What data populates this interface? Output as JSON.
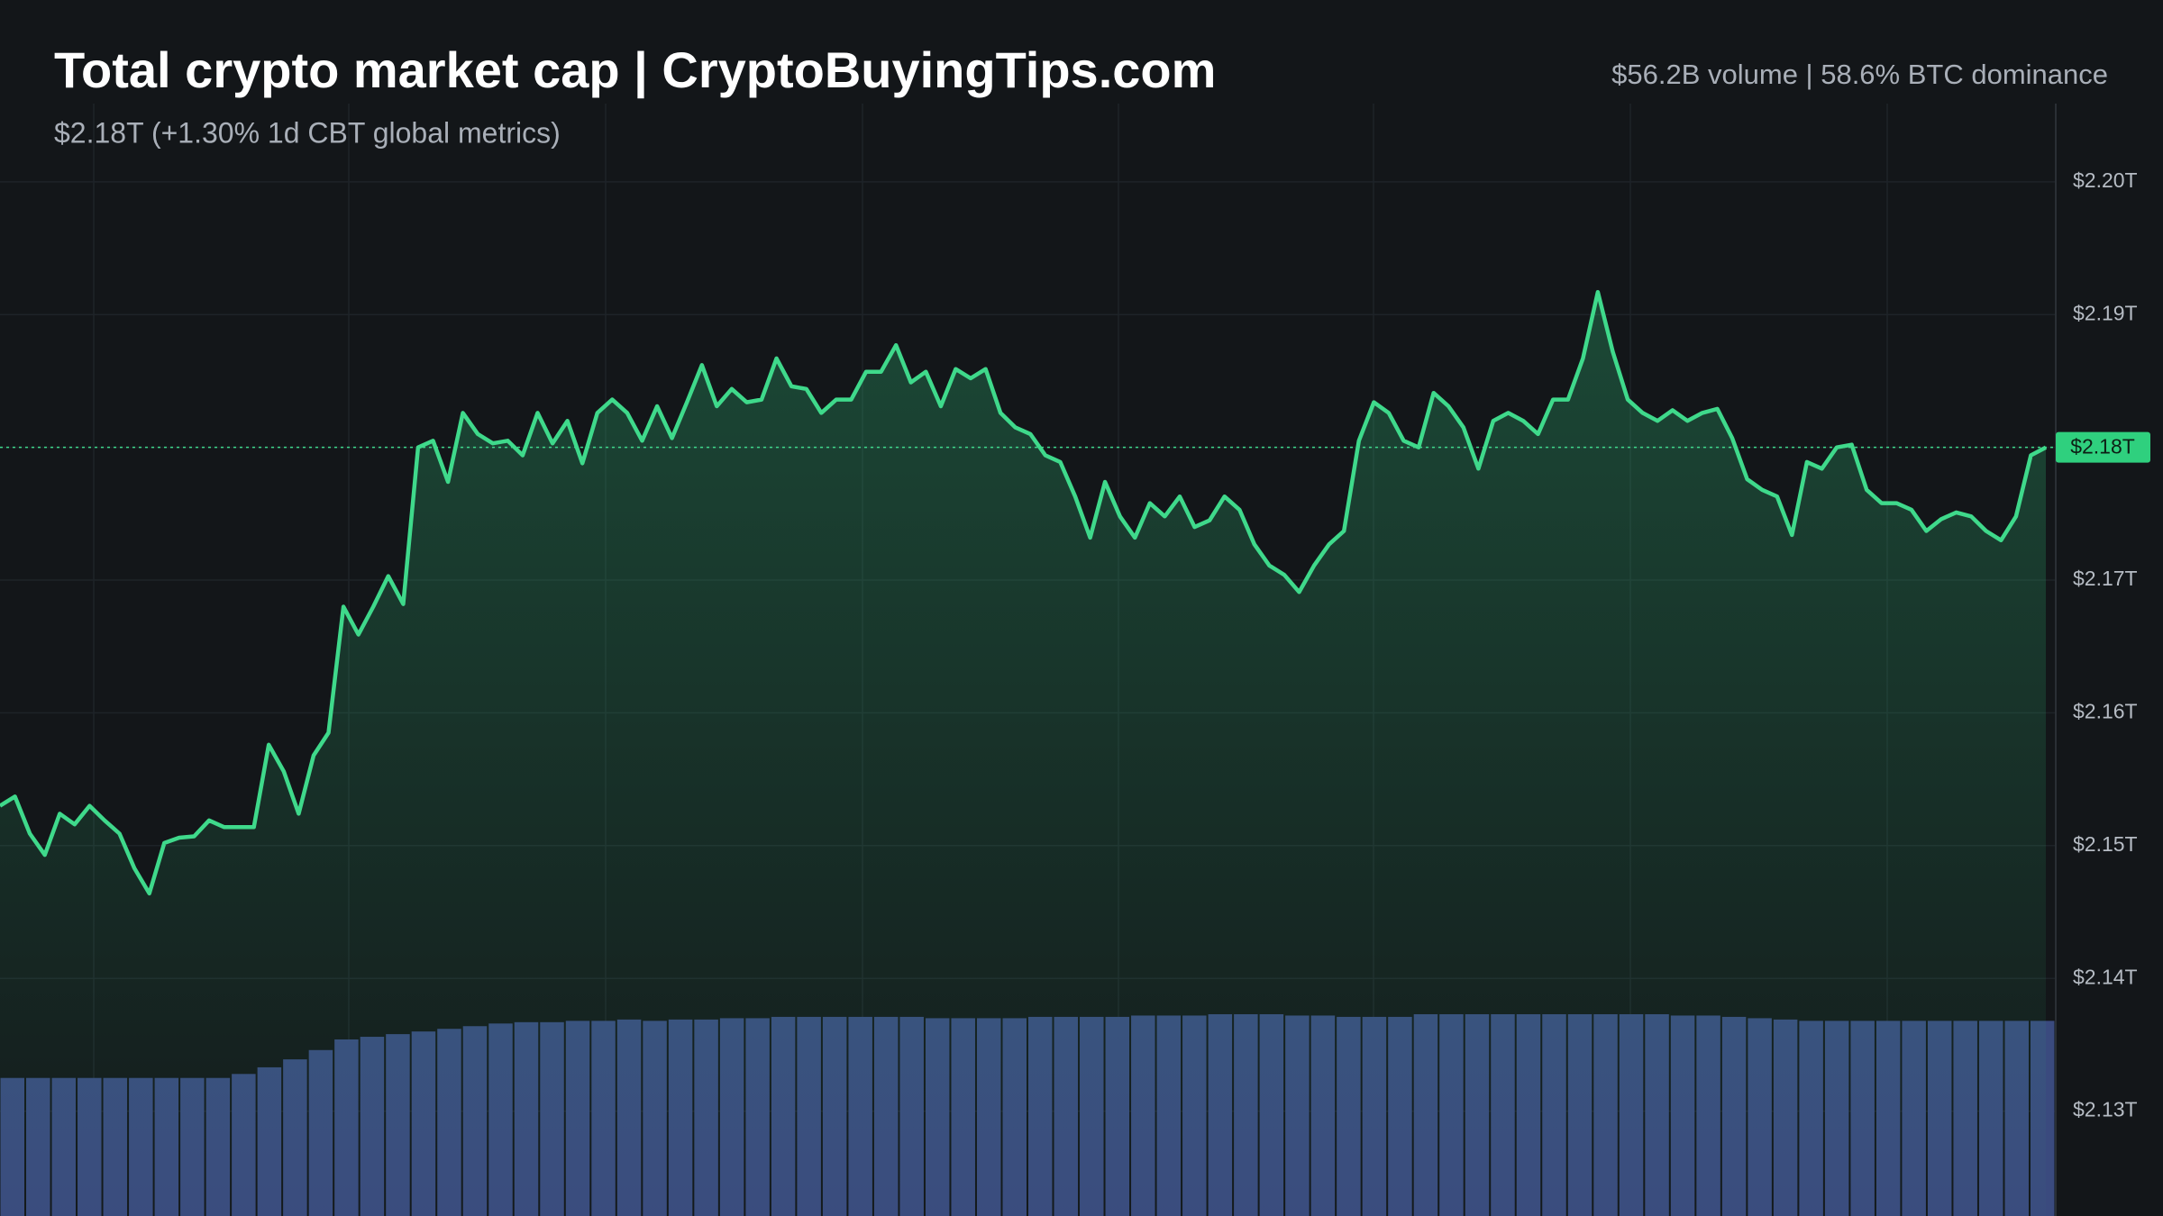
{
  "chart_data": {
    "type": "line",
    "title": "Total crypto market cap | CryptoBuyingTips.com",
    "subtitle": "$2.18T (+1.30% 1d CBT global metrics)",
    "stats": "$56.2B volume | 58.6% BTC dominance",
    "ylim": [
      2.1221,
      2.2137
    ],
    "yticks": [
      {
        "value": 2.2,
        "label": "$2.20T"
      },
      {
        "value": 2.19,
        "label": "$2.19T"
      },
      {
        "value": 2.18,
        "label": "$2.18T"
      },
      {
        "value": 2.17,
        "label": "$2.17T"
      },
      {
        "value": 2.16,
        "label": "$2.16T"
      },
      {
        "value": 2.15,
        "label": "$2.15T"
      },
      {
        "value": 2.14,
        "label": "$2.14T"
      },
      {
        "value": 2.13,
        "label": "$2.13T"
      }
    ],
    "grid": true,
    "last": {
      "value": 2.18,
      "label": "$2.18T"
    },
    "series": [
      {
        "name": "Market cap",
        "color": "#3fd98b",
        "values": [
          2.153,
          2.1537,
          2.1509,
          2.1493,
          2.1524,
          2.1516,
          2.153,
          2.1519,
          2.1509,
          2.1483,
          2.1464,
          2.1502,
          2.1506,
          2.1507,
          2.1519,
          2.1514,
          2.1514,
          2.1514,
          2.1576,
          2.1556,
          2.1524,
          2.1568,
          2.1585,
          2.168,
          2.1659,
          2.168,
          2.1703,
          2.1682,
          2.18,
          2.1805,
          2.1774,
          2.1826,
          2.181,
          2.1803,
          2.1805,
          2.1794,
          2.1826,
          2.1803,
          2.182,
          2.1788,
          2.1826,
          2.1836,
          2.1826,
          2.1805,
          2.1831,
          2.1807,
          2.1834,
          2.1862,
          2.1831,
          2.1844,
          2.1834,
          2.1836,
          2.1867,
          2.1846,
          2.1844,
          2.1826,
          2.1836,
          2.1836,
          2.1857,
          2.1857,
          2.1877,
          2.1849,
          2.1857,
          2.1831,
          2.1859,
          2.1852,
          2.1859,
          2.1826,
          2.1815,
          2.181,
          2.1794,
          2.1789,
          2.1763,
          2.1732,
          2.1774,
          2.1748,
          2.1732,
          2.1758,
          2.1748,
          2.1763,
          2.174,
          2.1745,
          2.1763,
          2.1753,
          2.1727,
          2.1711,
          2.1704,
          2.1691,
          2.1711,
          2.1727,
          2.1737,
          2.1805,
          2.1834,
          2.1826,
          2.1805,
          2.18,
          2.1841,
          2.1831,
          2.1815,
          2.1784,
          2.182,
          2.1826,
          2.182,
          2.181,
          2.1836,
          2.1836,
          2.1867,
          2.1917,
          2.1872,
          2.1836,
          2.1826,
          2.182,
          2.1828,
          2.182,
          2.1826,
          2.1829,
          2.1807,
          2.1776,
          2.1768,
          2.1763,
          2.1734,
          2.1789,
          2.1784,
          2.18,
          2.1802,
          2.1768,
          2.1758,
          2.1758,
          2.1753,
          2.1737,
          2.1746,
          2.1751,
          2.1748,
          2.1737,
          2.173,
          2.1748,
          2.1794,
          2.18
        ]
      },
      {
        "name": "Volume",
        "color": "#3a4a7e",
        "type": "bar",
        "values": [
          2.1325,
          2.1325,
          2.1325,
          2.1325,
          2.1325,
          2.1325,
          2.1325,
          2.1325,
          2.1325,
          2.1328,
          2.1333,
          2.1339,
          2.1346,
          2.1354,
          2.1356,
          2.1358,
          2.136,
          2.1362,
          2.1364,
          2.1366,
          2.1367,
          2.1367,
          2.1368,
          2.1368,
          2.1369,
          2.1368,
          2.1369,
          2.1369,
          2.137,
          2.137,
          2.1371,
          2.1371,
          2.1371,
          2.1371,
          2.1371,
          2.1371,
          2.137,
          2.137,
          2.137,
          2.137,
          2.1371,
          2.1371,
          2.1371,
          2.1371,
          2.1372,
          2.1372,
          2.1372,
          2.1373,
          2.1373,
          2.1373,
          2.1372,
          2.1372,
          2.1371,
          2.1371,
          2.1371,
          2.1373,
          2.1373,
          2.1373,
          2.1373,
          2.1373,
          2.1373,
          2.1373,
          2.1373,
          2.1373,
          2.1373,
          2.1372,
          2.1372,
          2.1371,
          2.137,
          2.1369,
          2.1368,
          2.1368,
          2.1368,
          2.1368,
          2.1368,
          2.1368,
          2.1368,
          2.1368,
          2.1368,
          2.1368
        ]
      }
    ]
  }
}
